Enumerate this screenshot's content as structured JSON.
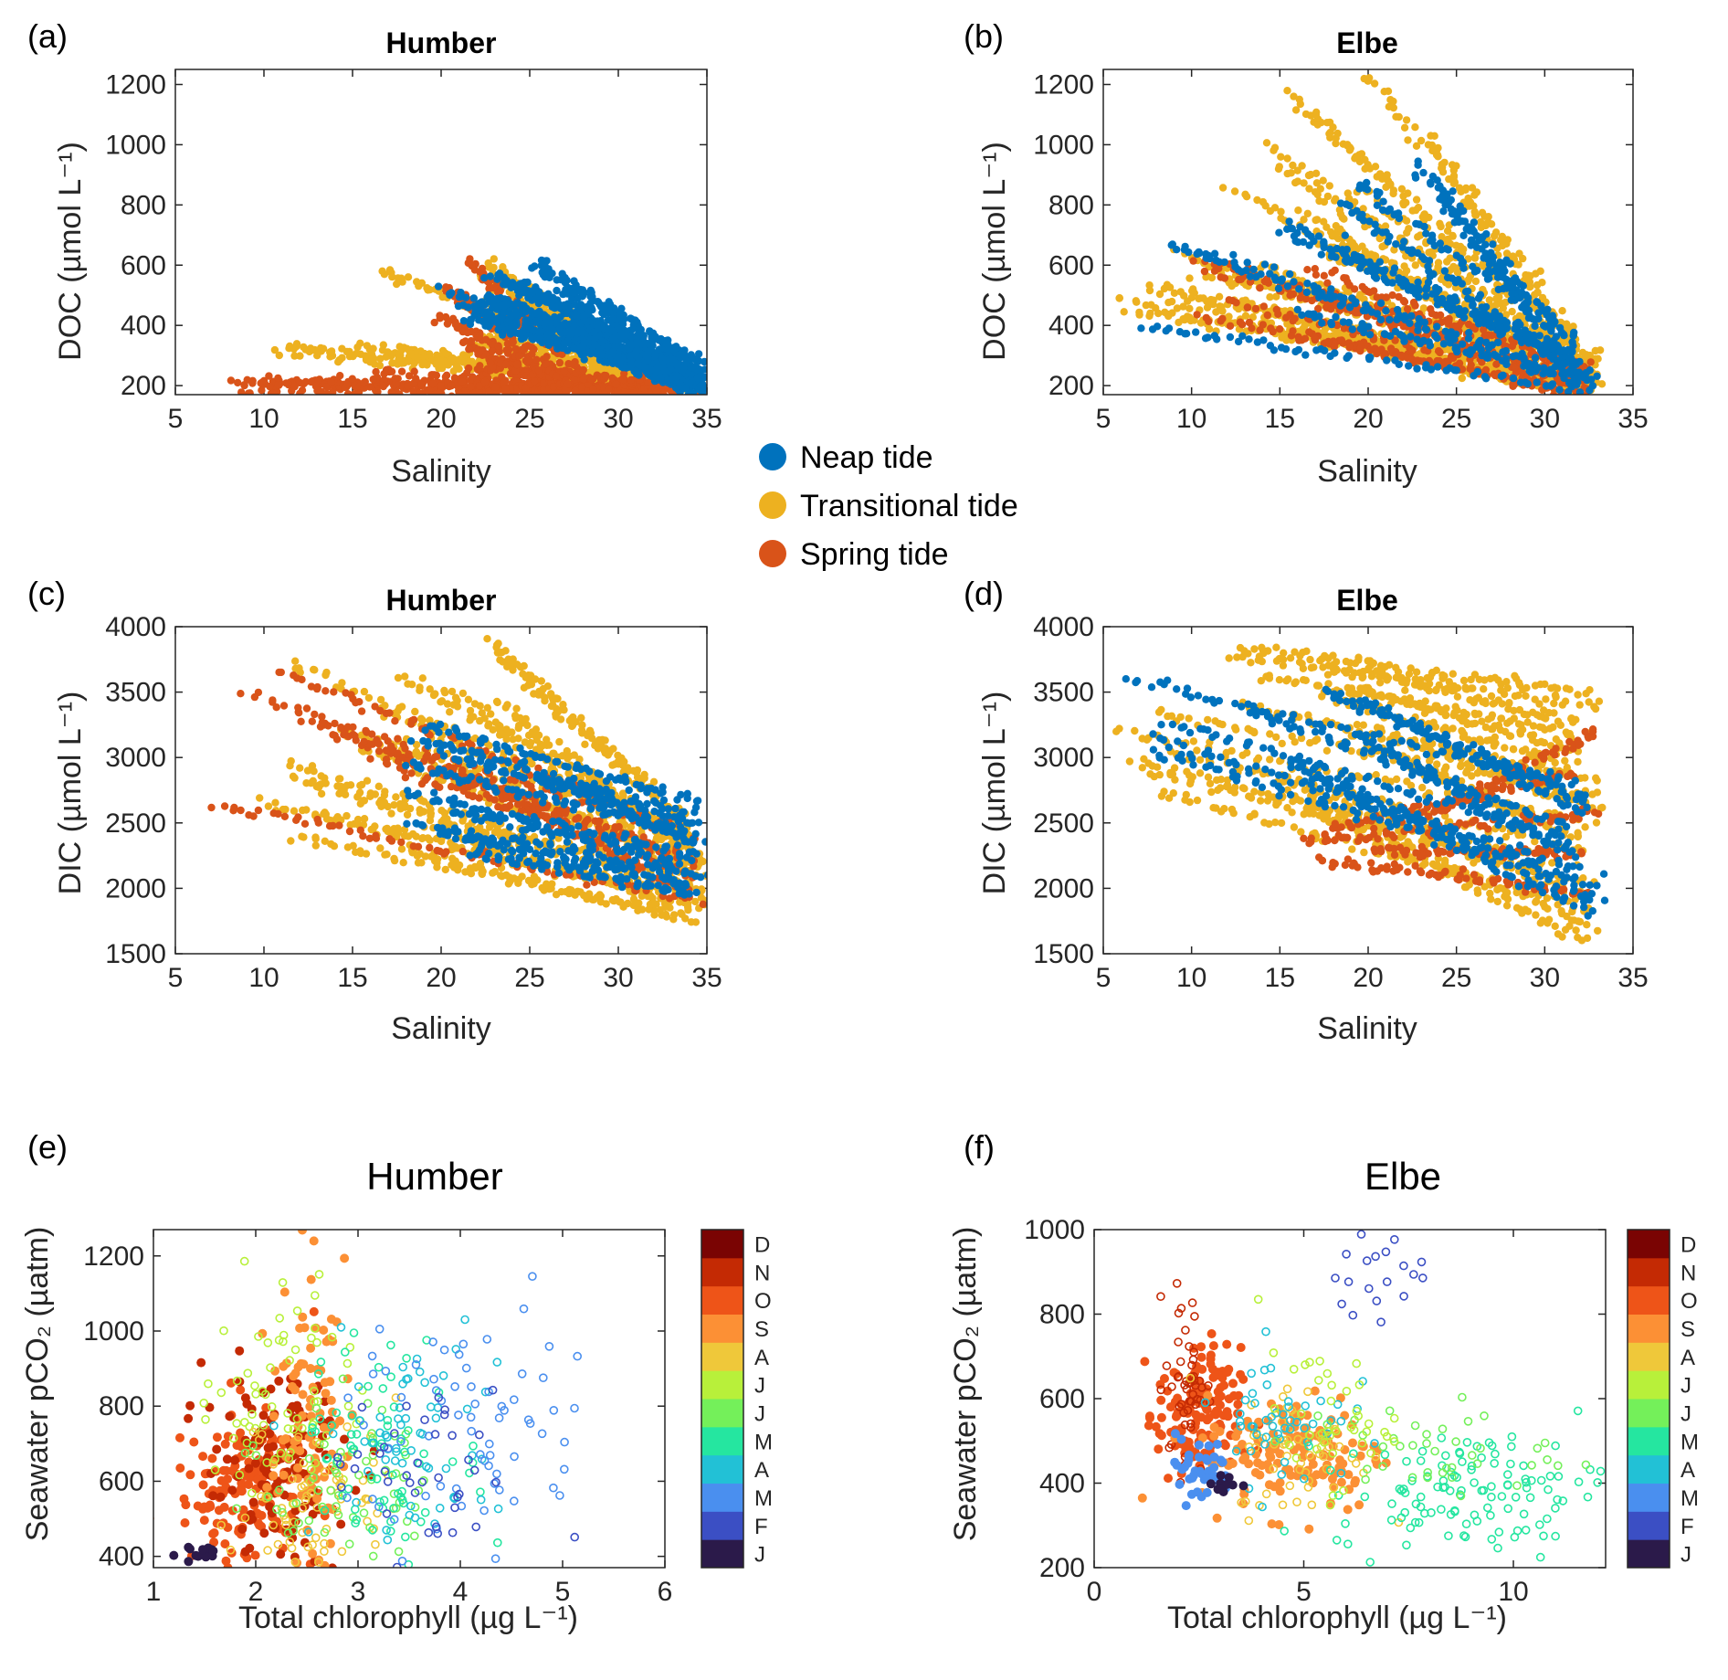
{
  "legend": {
    "items": [
      {
        "label": "Neap tide",
        "color": "#0072BD"
      },
      {
        "label": "Transitional tide",
        "color": "#EDB120"
      },
      {
        "label": "Spring tide",
        "color": "#D95319"
      }
    ]
  },
  "colorbar": {
    "months": [
      "J",
      "F",
      "M",
      "A",
      "M",
      "J",
      "J",
      "A",
      "S",
      "O",
      "N",
      "D"
    ],
    "colors": [
      "#2b1a4a",
      "#3b4fc4",
      "#4a8fef",
      "#22c1d6",
      "#25e6a0",
      "#74f05a",
      "#b8f03a",
      "#efc83a",
      "#fc9035",
      "#ee5418",
      "#c42a04",
      "#7a0403"
    ]
  },
  "chart_data": [
    {
      "id": "a",
      "panel_label": "(a)",
      "type": "scatter",
      "title": "Humber",
      "xlabel": "Salinity",
      "ylabel": "DOC (µmol L⁻¹)",
      "xlim": [
        5,
        35
      ],
      "ylim": [
        170,
        1250
      ],
      "xticks": [
        5,
        10,
        15,
        20,
        25,
        30,
        35
      ],
      "yticks": [
        200,
        400,
        600,
        800,
        1000,
        1200
      ],
      "series": [
        {
          "name": "Transitional tide",
          "color": "#EDB120",
          "groups": [
            {
              "x_range": [
                9,
                34
              ],
              "y_start": [
                300,
                360
              ],
              "y_end": [
                190,
                240
              ],
              "n": 9
            },
            {
              "x_range": [
                13,
                32
              ],
              "y_start": [
                500,
                620
              ],
              "y_end": [
                220,
                300
              ],
              "n": 5
            }
          ]
        },
        {
          "name": "Spring tide",
          "color": "#D95319",
          "groups": [
            {
              "x_range": [
                7,
                34
              ],
              "y_start": [
                170,
                240
              ],
              "y_end": [
                170,
                210
              ],
              "n": 9
            },
            {
              "x_range": [
                18,
                28
              ],
              "y_start": [
                240,
                620
              ],
              "y_end": [
                180,
                230
              ],
              "n": 5
            }
          ]
        },
        {
          "name": "Neap tide",
          "color": "#0072BD",
          "groups": [
            {
              "x_range": [
                19,
                35
              ],
              "y_start": [
                380,
                610
              ],
              "y_end": [
                180,
                260
              ],
              "n": 18
            }
          ]
        }
      ]
    },
    {
      "id": "b",
      "panel_label": "(b)",
      "type": "scatter",
      "title": "Elbe",
      "xlabel": "Salinity",
      "ylabel": "DOC (µmol L⁻¹)",
      "xlim": [
        5,
        35
      ],
      "ylim": [
        170,
        1250
      ],
      "xticks": [
        5,
        10,
        15,
        20,
        25,
        30,
        35
      ],
      "yticks": [
        200,
        400,
        600,
        800,
        1000,
        1200
      ],
      "series": [
        {
          "name": "Transitional tide",
          "color": "#EDB120",
          "groups": [
            {
              "x_range": [
                5,
                33
              ],
              "y_start": [
                350,
                650
              ],
              "y_end": [
                170,
                300
              ],
              "n": 14
            },
            {
              "x_range": [
                12,
                33
              ],
              "y_start": [
                700,
                1220
              ],
              "y_end": [
                180,
                320
              ],
              "n": 10
            }
          ]
        },
        {
          "name": "Spring tide",
          "color": "#D95319",
          "groups": [
            {
              "x_range": [
                9,
                33
              ],
              "y_start": [
                380,
                640
              ],
              "y_end": [
                170,
                260
              ],
              "n": 7
            }
          ]
        },
        {
          "name": "Neap tide",
          "color": "#0072BD",
          "groups": [
            {
              "x_range": [
                6,
                33
              ],
              "y_start": [
                400,
                410
              ],
              "y_end": [
                180,
                220
              ],
              "n": 2
            },
            {
              "x_range": [
                8,
                33
              ],
              "y_start": [
                640,
                720
              ],
              "y_end": [
                200,
                300
              ],
              "n": 5
            },
            {
              "x_range": [
                18,
                32
              ],
              "y_start": [
                800,
                940
              ],
              "y_end": [
                260,
                380
              ],
              "n": 4
            }
          ]
        }
      ]
    },
    {
      "id": "c",
      "panel_label": "(c)",
      "type": "scatter",
      "title": "Humber",
      "xlabel": "Salinity",
      "ylabel": "DIC (µmol L⁻¹)",
      "xlim": [
        5,
        35
      ],
      "ylim": [
        1500,
        4000
      ],
      "xticks": [
        5,
        10,
        15,
        20,
        25,
        30,
        35
      ],
      "yticks": [
        1500,
        2000,
        2500,
        3000,
        3500,
        4000
      ],
      "series": [
        {
          "name": "Transitional tide",
          "color": "#EDB120",
          "groups": [
            {
              "x_range": [
                9,
                35
              ],
              "y_start": [
                2300,
                3900
              ],
              "y_end": [
                1750,
                2500
              ],
              "n": 18
            }
          ]
        },
        {
          "name": "Spring tide",
          "color": "#D95319",
          "groups": [
            {
              "x_range": [
                7,
                35
              ],
              "y_start": [
                2650,
                3650
              ],
              "y_end": [
                1900,
                2450
              ],
              "n": 7
            }
          ]
        },
        {
          "name": "Neap tide",
          "color": "#0072BD",
          "groups": [
            {
              "x_range": [
                18,
                35
              ],
              "y_start": [
                2300,
                3250
              ],
              "y_end": [
                1950,
                2650
              ],
              "n": 10
            }
          ]
        }
      ]
    },
    {
      "id": "d",
      "panel_label": "(d)",
      "type": "scatter",
      "title": "Elbe",
      "xlabel": "Salinity",
      "ylabel": "DIC (µmol L⁻¹)",
      "xlim": [
        5,
        35
      ],
      "ylim": [
        1500,
        4000
      ],
      "xticks": [
        5,
        10,
        15,
        20,
        25,
        30,
        35
      ],
      "yticks": [
        1500,
        2000,
        2500,
        3000,
        3500,
        4000
      ],
      "series": [
        {
          "name": "Transitional tide",
          "color": "#EDB120",
          "groups": [
            {
              "x_range": [
                5,
                33
              ],
              "y_start": [
                2600,
                3850
              ],
              "y_end": [
                1600,
                3500
              ],
              "n": 18
            }
          ]
        },
        {
          "name": "Spring tide",
          "color": "#D95319",
          "groups": [
            {
              "x_range": [
                12,
                33
              ],
              "y_start": [
                2200,
                2500
              ],
              "y_end": [
                1950,
                3200
              ],
              "n": 5
            }
          ]
        },
        {
          "name": "Neap tide",
          "color": "#0072BD",
          "groups": [
            {
              "x_range": [
                6,
                33
              ],
              "y_start": [
                2900,
                3600
              ],
              "y_end": [
                1800,
                2800
              ],
              "n": 10
            }
          ]
        }
      ]
    },
    {
      "id": "e",
      "panel_label": "(e)",
      "type": "scatter",
      "title": "Humber",
      "xlabel": "Total chlorophyll (µg L⁻¹)",
      "ylabel": "Seawater pCO₂ (µatm)",
      "xlim": [
        1,
        6
      ],
      "ylim": [
        370,
        1270
      ],
      "xticks": [
        1,
        2,
        3,
        4,
        5,
        6
      ],
      "yticks": [
        400,
        600,
        800,
        1000,
        1200
      ],
      "color_by": "month",
      "clusters": [
        {
          "month": 9,
          "cx": 1.9,
          "cy": 580,
          "sx": 0.35,
          "sy": 110,
          "n": 160,
          "filled": true
        },
        {
          "month": 10,
          "cx": 2.2,
          "cy": 640,
          "sx": 0.35,
          "sy": 120,
          "n": 120,
          "filled": true
        },
        {
          "month": 8,
          "cx": 2.5,
          "cy": 780,
          "sx": 0.18,
          "sy": 190,
          "n": 90,
          "filled": true
        },
        {
          "month": 6,
          "cx": 2.3,
          "cy": 820,
          "sx": 0.35,
          "sy": 160,
          "n": 70,
          "filled": false
        },
        {
          "month": 7,
          "cx": 2.6,
          "cy": 560,
          "sx": 0.4,
          "sy": 110,
          "n": 70,
          "filled": false
        },
        {
          "month": 5,
          "cx": 2.9,
          "cy": 600,
          "sx": 0.4,
          "sy": 110,
          "n": 60,
          "filled": false
        },
        {
          "month": 4,
          "cx": 3.3,
          "cy": 680,
          "sx": 0.45,
          "sy": 140,
          "n": 70,
          "filled": false
        },
        {
          "month": 3,
          "cx": 3.5,
          "cy": 720,
          "sx": 0.45,
          "sy": 150,
          "n": 60,
          "filled": false
        },
        {
          "month": 2,
          "cx": 4.2,
          "cy": 720,
          "sx": 0.6,
          "sy": 180,
          "n": 70,
          "filled": false
        },
        {
          "month": 1,
          "cx": 3.6,
          "cy": 600,
          "sx": 0.5,
          "sy": 110,
          "n": 40,
          "filled": false
        },
        {
          "month": 0,
          "cx": 1.45,
          "cy": 410,
          "sx": 0.12,
          "sy": 12,
          "n": 15,
          "filled": true
        }
      ]
    },
    {
      "id": "f",
      "panel_label": "(f)",
      "type": "scatter",
      "title": "Elbe",
      "xlabel": "Total chlorophyll (µg L⁻¹)",
      "ylabel": "Seawater pCO₂ (µatm)",
      "xlim": [
        0,
        12.2
      ],
      "ylim": [
        200,
        1000
      ],
      "xticks": [
        0,
        5,
        10
      ],
      "yticks": [
        200,
        400,
        600,
        800,
        1000
      ],
      "color_by": "month",
      "clusters": [
        {
          "month": 9,
          "cx": 2.5,
          "cy": 560,
          "sx": 0.5,
          "sy": 80,
          "n": 150,
          "filled": true
        },
        {
          "month": 10,
          "cx": 2.2,
          "cy": 640,
          "sx": 0.25,
          "sy": 110,
          "n": 50,
          "filled": false
        },
        {
          "month": 8,
          "cx": 4.8,
          "cy": 470,
          "sx": 1.1,
          "sy": 70,
          "n": 140,
          "filled": true
        },
        {
          "month": 7,
          "cx": 5.0,
          "cy": 480,
          "sx": 0.8,
          "sy": 80,
          "n": 60,
          "filled": false
        },
        {
          "month": 3,
          "cx": 4.5,
          "cy": 560,
          "sx": 0.8,
          "sy": 80,
          "n": 50,
          "filled": false
        },
        {
          "month": 2,
          "cx": 2.5,
          "cy": 430,
          "sx": 0.4,
          "sy": 40,
          "n": 40,
          "filled": true
        },
        {
          "month": 4,
          "cx": 9.0,
          "cy": 380,
          "sx": 1.6,
          "sy": 70,
          "n": 120,
          "filled": false
        },
        {
          "month": 5,
          "cx": 8.0,
          "cy": 480,
          "sx": 1.5,
          "sy": 60,
          "n": 40,
          "filled": false
        },
        {
          "month": 6,
          "cx": 5.5,
          "cy": 550,
          "sx": 0.8,
          "sy": 80,
          "n": 40,
          "filled": false
        },
        {
          "month": 1,
          "cx": 7.0,
          "cy": 880,
          "sx": 0.6,
          "sy": 60,
          "n": 20,
          "filled": false
        },
        {
          "month": 0,
          "cx": 3.0,
          "cy": 400,
          "sx": 0.2,
          "sy": 15,
          "n": 10,
          "filled": true
        }
      ]
    }
  ]
}
